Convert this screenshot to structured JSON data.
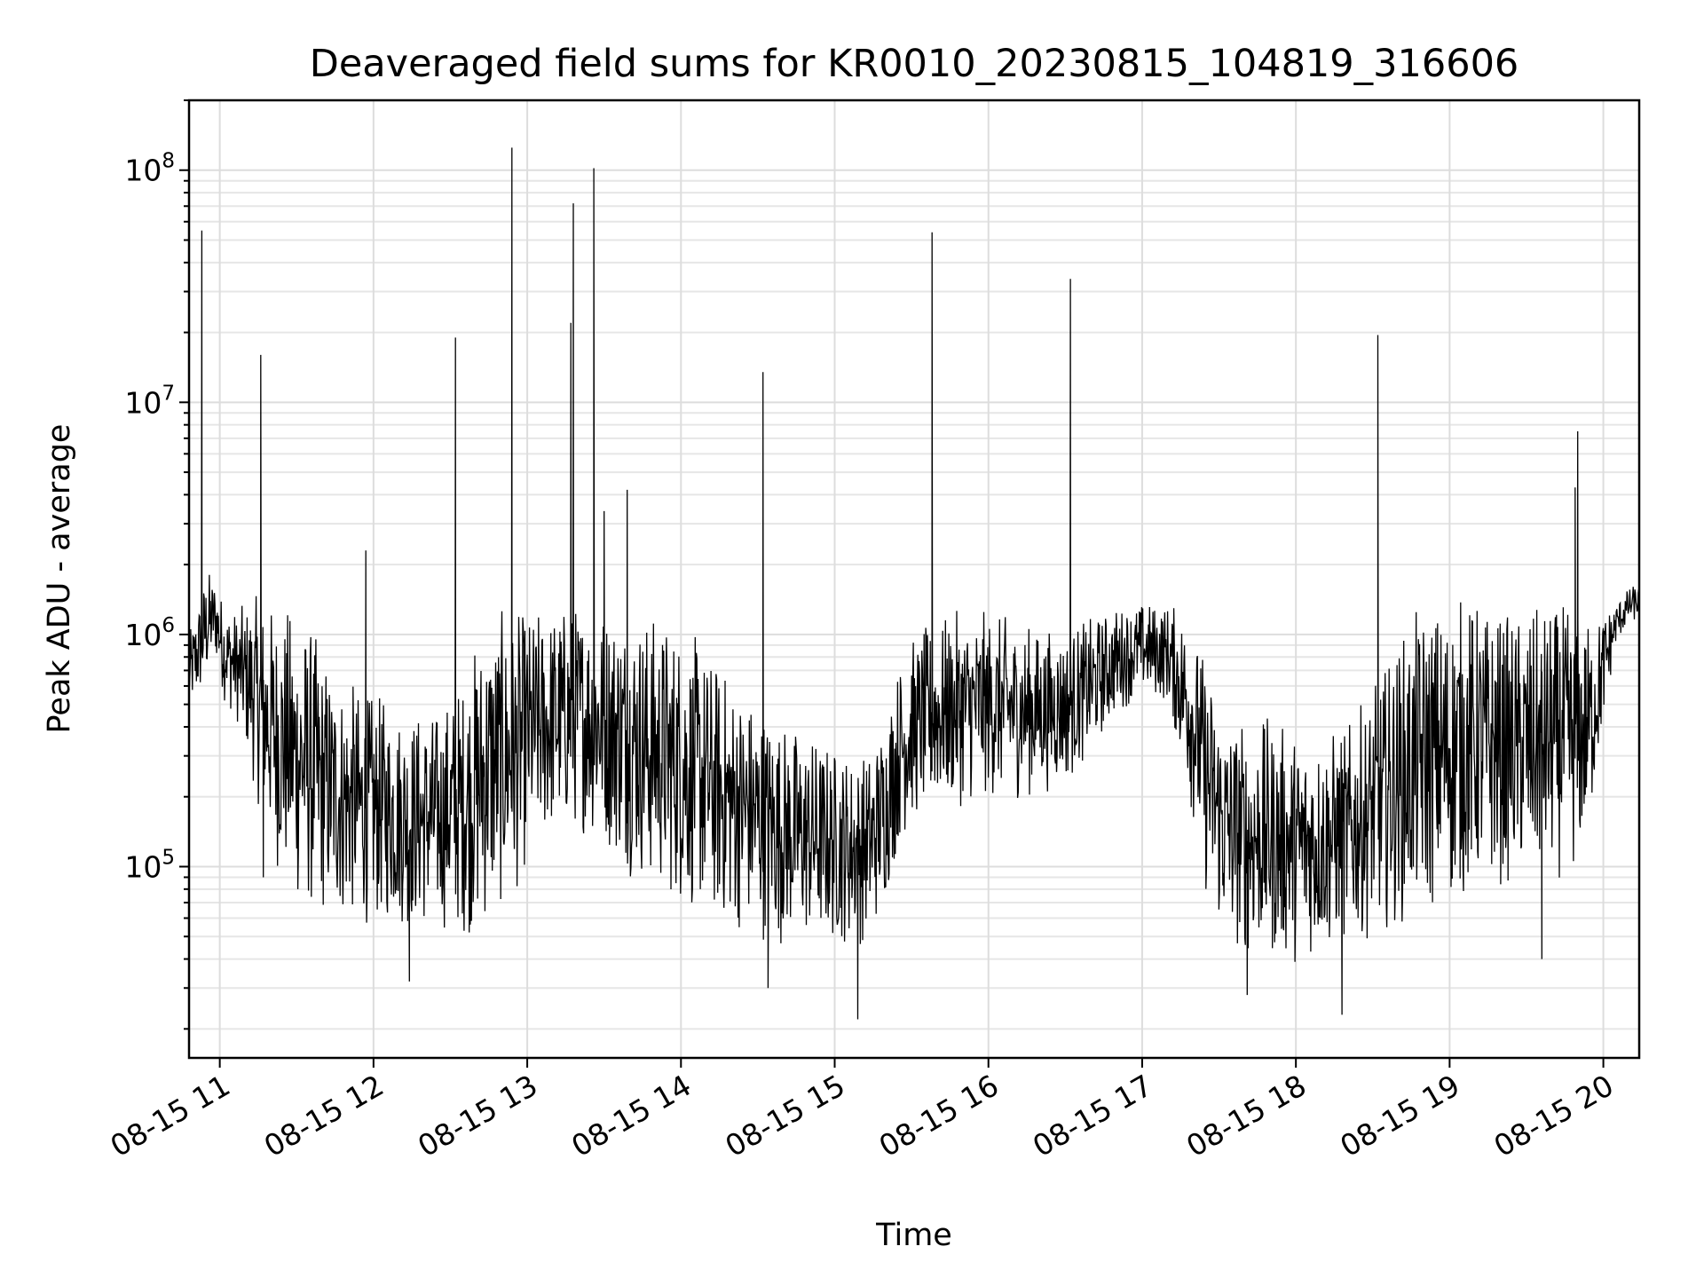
{
  "chart_data": {
    "type": "line",
    "title": "Deaveraged field sums for KR0010_20230815_104819_316606",
    "xlabel": "Time",
    "ylabel": "Peak ADU - average",
    "yscale": "log",
    "grid": "on",
    "xlim": [
      "2023-08-15 10:48",
      "2023-08-15 20:14"
    ],
    "ylim": [
      15000,
      200000000
    ],
    "x_tick_labels": [
      "08-15 11",
      "08-15 12",
      "08-15 13",
      "08-15 14",
      "08-15 15",
      "08-15 16",
      "08-15 17",
      "08-15 18",
      "08-15 19",
      "08-15 20"
    ],
    "x_tick_values": [
      "2023-08-15 11:00",
      "2023-08-15 12:00",
      "2023-08-15 13:00",
      "2023-08-15 14:00",
      "2023-08-15 15:00",
      "2023-08-15 16:00",
      "2023-08-15 17:00",
      "2023-08-15 18:00",
      "2023-08-15 19:00",
      "2023-08-15 20:00"
    ],
    "y_ticks": [
      {
        "value": 100000,
        "base": "10",
        "exp": "5"
      },
      {
        "value": 1000000,
        "base": "10",
        "exp": "6"
      },
      {
        "value": 10000000,
        "base": "10",
        "exp": "7"
      },
      {
        "value": 100000000,
        "base": "10",
        "exp": "8"
      }
    ],
    "series": [
      {
        "color": "#000000",
        "x": [
          "2023-08-15 10:48",
          "2023-08-15 10:52",
          "2023-08-15 10:55",
          "2023-08-15 10:58",
          "2023-08-15 11:02",
          "2023-08-15 11:07",
          "2023-08-15 11:12",
          "2023-08-15 11:16",
          "2023-08-15 11:20",
          "2023-08-15 11:25",
          "2023-08-15 11:30",
          "2023-08-15 11:35",
          "2023-08-15 11:40",
          "2023-08-15 11:48",
          "2023-08-15 11:55",
          "2023-08-15 12:05",
          "2023-08-15 12:15",
          "2023-08-15 12:25",
          "2023-08-15 12:35",
          "2023-08-15 12:40",
          "2023-08-15 12:45",
          "2023-08-15 12:55",
          "2023-08-15 13:00",
          "2023-08-15 13:10",
          "2023-08-15 13:20",
          "2023-08-15 13:30",
          "2023-08-15 13:40",
          "2023-08-15 13:50",
          "2023-08-15 14:00",
          "2023-08-15 14:10",
          "2023-08-15 14:20",
          "2023-08-15 14:30",
          "2023-08-15 14:40",
          "2023-08-15 14:50",
          "2023-08-15 15:00",
          "2023-08-15 15:10",
          "2023-08-15 15:15",
          "2023-08-15 15:20",
          "2023-08-15 15:25",
          "2023-08-15 15:30",
          "2023-08-15 15:40",
          "2023-08-15 15:50",
          "2023-08-15 16:00",
          "2023-08-15 16:10",
          "2023-08-15 16:20",
          "2023-08-15 16:30",
          "2023-08-15 16:40",
          "2023-08-15 16:50",
          "2023-08-15 17:00",
          "2023-08-15 17:10",
          "2023-08-15 17:18",
          "2023-08-15 17:25",
          "2023-08-15 17:32",
          "2023-08-15 17:40",
          "2023-08-15 17:50",
          "2023-08-15 18:00",
          "2023-08-15 18:10",
          "2023-08-15 18:20",
          "2023-08-15 18:30",
          "2023-08-15 18:40",
          "2023-08-15 18:50",
          "2023-08-15 19:00",
          "2023-08-15 19:05",
          "2023-08-15 19:10",
          "2023-08-15 19:15",
          "2023-08-15 19:20",
          "2023-08-15 19:30",
          "2023-08-15 19:40",
          "2023-08-15 19:50",
          "2023-08-15 19:55",
          "2023-08-15 20:00",
          "2023-08-15 20:05",
          "2023-08-15 20:10",
          "2023-08-15 20:14"
        ],
        "upper": [
          1000000,
          1500000,
          2000000,
          1800000,
          1400000,
          1300000,
          1500000,
          1500000,
          1450000,
          1400000,
          1350000,
          1200000,
          900000,
          700000,
          600000,
          550000,
          500000,
          500000,
          700000,
          1000000,
          1300000,
          1300000,
          1300000,
          1400000,
          1450000,
          1450000,
          1400000,
          1300000,
          1200000,
          900000,
          700000,
          550000,
          450000,
          400000,
          350000,
          320000,
          350000,
          500000,
          800000,
          1000000,
          1200000,
          1300000,
          1300000,
          1200000,
          1100000,
          1100000,
          1200000,
          1350000,
          1400000,
          1400000,
          1300000,
          800000,
          500000,
          450000,
          450000,
          400000,
          400000,
          420000,
          600000,
          1000000,
          1400000,
          1500000,
          1550000,
          1500000,
          1400000,
          1300000,
          1300000,
          1400000,
          1350000,
          1200000,
          1300000,
          1400000,
          1600000,
          1700000
        ],
        "lower": [
          450000,
          500000,
          600000,
          800000,
          500000,
          400000,
          250000,
          160000,
          110000,
          80000,
          65000,
          60000,
          58000,
          55000,
          55000,
          55000,
          52000,
          52000,
          50000,
          48000,
          55000,
          70000,
          100000,
          130000,
          140000,
          120000,
          90000,
          75000,
          65000,
          58000,
          52000,
          48000,
          45000,
          45000,
          45000,
          45000,
          50000,
          70000,
          120000,
          150000,
          170000,
          180000,
          190000,
          190000,
          200000,
          220000,
          300000,
          450000,
          550000,
          500000,
          200000,
          70000,
          45000,
          40000,
          38000,
          38000,
          40000,
          45000,
          50000,
          55000,
          60000,
          65000,
          70000,
          75000,
          78000,
          80000,
          82000,
          85000,
          90000,
          150000,
          400000,
          900000,
          1100000,
          1150000
        ]
      }
    ],
    "spikes": [
      {
        "x": "2023-08-15 10:53",
        "y": 55000000
      },
      {
        "x": "2023-08-15 11:16",
        "y": 16000000
      },
      {
        "x": "2023-08-15 11:57",
        "y": 2300000
      },
      {
        "x": "2023-08-15 12:32",
        "y": 19000000
      },
      {
        "x": "2023-08-15 12:54",
        "y": 125000000
      },
      {
        "x": "2023-08-15 13:17",
        "y": 22000000
      },
      {
        "x": "2023-08-15 13:18",
        "y": 72000000
      },
      {
        "x": "2023-08-15 13:26",
        "y": 102000000
      },
      {
        "x": "2023-08-15 13:30",
        "y": 3400000
      },
      {
        "x": "2023-08-15 13:39",
        "y": 4200000
      },
      {
        "x": "2023-08-15 14:32",
        "y": 13500000
      },
      {
        "x": "2023-08-15 15:38",
        "y": 54000000
      },
      {
        "x": "2023-08-15 16:32",
        "y": 34000000
      },
      {
        "x": "2023-08-15 18:32",
        "y": 19500000
      },
      {
        "x": "2023-08-15 19:49",
        "y": 4300000
      },
      {
        "x": "2023-08-15 19:50",
        "y": 7500000
      }
    ],
    "dips": [
      {
        "x": "2023-08-15 11:17",
        "y": 90000
      },
      {
        "x": "2023-08-15 12:14",
        "y": 32000
      },
      {
        "x": "2023-08-15 14:34",
        "y": 30000
      },
      {
        "x": "2023-08-15 15:09",
        "y": 22000
      },
      {
        "x": "2023-08-15 17:41",
        "y": 28000
      },
      {
        "x": "2023-08-15 18:18",
        "y": 23000
      },
      {
        "x": "2023-08-15 19:36",
        "y": 40000
      }
    ]
  }
}
